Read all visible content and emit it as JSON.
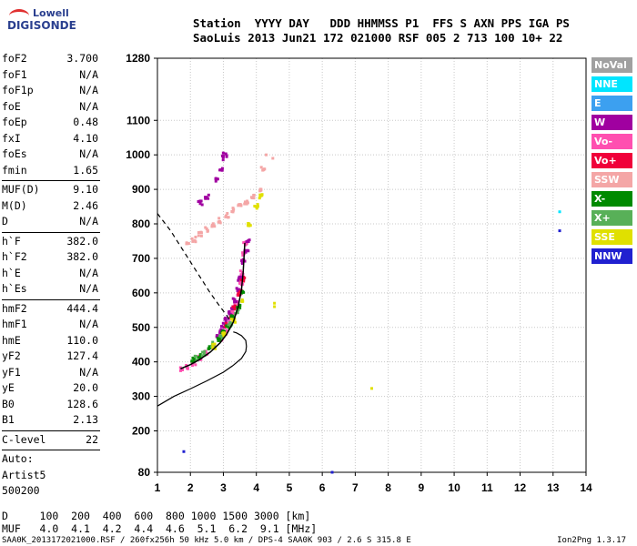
{
  "logo": {
    "line1": "Lowell",
    "line2": "DIGISONDE"
  },
  "header": {
    "labels": "Station  YYYY DAY   DDD HHMMSS P1  FFS S AXN PPS IGA PS",
    "values": "SaoLuis 2013 Jun21 172 021000 RSF 005 2 713 100 10+ 22"
  },
  "params": {
    "group1": [
      {
        "label": "foF2",
        "value": "3.700"
      },
      {
        "label": "foF1",
        "value": "N/A"
      },
      {
        "label": "foF1p",
        "value": "N/A"
      },
      {
        "label": "foE",
        "value": "N/A"
      },
      {
        "label": "foEp",
        "value": "0.48"
      },
      {
        "label": "fxI",
        "value": "4.10"
      },
      {
        "label": "foEs",
        "value": "N/A"
      },
      {
        "label": "fmin",
        "value": "1.65"
      }
    ],
    "group2": [
      {
        "label": "MUF(D)",
        "value": "9.10"
      },
      {
        "label": "M(D)",
        "value": "2.46"
      },
      {
        "label": "D",
        "value": "N/A"
      }
    ],
    "group3": [
      {
        "label": "h`F",
        "value": "382.0"
      },
      {
        "label": "h`F2",
        "value": "382.0"
      },
      {
        "label": "h`E",
        "value": "N/A"
      },
      {
        "label": "h`Es",
        "value": "N/A"
      }
    ],
    "group4": [
      {
        "label": "hmF2",
        "value": "444.4"
      },
      {
        "label": "hmF1",
        "value": "N/A"
      },
      {
        "label": "hmE",
        "value": "110.0"
      },
      {
        "label": "yF2",
        "value": "127.4"
      },
      {
        "label": "yF1",
        "value": "N/A"
      },
      {
        "label": "yE",
        "value": "20.0"
      },
      {
        "label": "B0",
        "value": "128.6"
      },
      {
        "label": "B1",
        "value": "2.13"
      }
    ],
    "group5": [
      {
        "label": "C-level",
        "value": "22"
      }
    ],
    "auto": [
      "Auto:",
      "Artist5",
      "500200"
    ]
  },
  "muf_table": {
    "d_line": "D     100  200  400  600  800 1000 1500 3000 [km]",
    "muf_line": "MUF   4.0  4.1  4.2  4.4  4.6  5.1  6.2  9.1 [MHz]"
  },
  "footer": {
    "left": "SAA0K_2013172021000.RSF / 260fx256h 50 kHz 5.0 km / DPS-4 SAA0K 903 / 2.6 S 315.8 E",
    "right": "Ion2Png 1.3.17"
  },
  "legend": [
    {
      "label": "NoVal",
      "color": "#a0a0a0"
    },
    {
      "label": "NNE",
      "color": "#00e5ff"
    },
    {
      "label": "E",
      "color": "#3ca0f0"
    },
    {
      "label": "W",
      "color": "#a000a0"
    },
    {
      "label": "Vo-",
      "color": "#ff4fb0"
    },
    {
      "label": "Vo+",
      "color": "#f0003a"
    },
    {
      "label": "SSW",
      "color": "#f4a6a6"
    },
    {
      "label": "X-",
      "color": "#008a00"
    },
    {
      "label": "X+",
      "color": "#58b058"
    },
    {
      "label": "SSE",
      "color": "#e0e000"
    },
    {
      "label": "NNW",
      "color": "#2020d0"
    }
  ],
  "chart_data": {
    "type": "scatter",
    "xlim": [
      1,
      14
    ],
    "ylim": [
      80,
      1280
    ],
    "x_ticks": [
      "1",
      "2",
      "3",
      "4",
      "5",
      "6",
      "7",
      "8",
      "9",
      "10",
      "11",
      "12",
      "13",
      "14"
    ],
    "y_ticks": [
      {
        "value": 80,
        "label": "80"
      },
      {
        "value": 200,
        "label": "200"
      },
      {
        "value": 300,
        "label": "300"
      },
      {
        "value": 400,
        "label": "400"
      },
      {
        "value": 500,
        "label": "500"
      },
      {
        "value": 600,
        "label": "600"
      },
      {
        "value": 700,
        "label": "700"
      },
      {
        "value": 800,
        "label": "800"
      },
      {
        "value": 900,
        "label": "900"
      },
      {
        "value": 1000,
        "label": "1000"
      },
      {
        "value": 1100,
        "label": "1100"
      },
      {
        "value": 1280,
        "label": "1280"
      }
    ],
    "grid": true,
    "profile_curve": {
      "x": [
        1.0,
        1.5,
        2.0,
        2.5,
        3.0,
        3.3,
        3.55,
        3.68,
        3.7,
        3.68,
        3.55,
        3.4,
        3.3
      ],
      "y": [
        272,
        300,
        322,
        345,
        370,
        390,
        410,
        430,
        445,
        462,
        476,
        484,
        487
      ]
    },
    "trace_curve": {
      "x": [
        1.7,
        2.0,
        2.3,
        2.6,
        2.9,
        3.1,
        3.3,
        3.45,
        3.55,
        3.6,
        3.63,
        3.65
      ],
      "y": [
        380,
        392,
        408,
        428,
        455,
        480,
        515,
        560,
        610,
        660,
        710,
        745
      ]
    },
    "muf_curve_dashed": {
      "x": [
        1.0,
        1.4,
        1.8,
        2.2,
        2.6,
        2.9,
        3.1,
        3.2
      ],
      "y": [
        830,
        780,
        720,
        660,
        600,
        560,
        535,
        520
      ]
    },
    "scatter_points": {
      "o_trace_main": {
        "color": "#ff4fb0",
        "x": [
          1.75,
          1.9,
          2.1,
          2.3,
          2.5,
          2.7,
          2.9,
          3.05,
          3.2,
          3.3,
          3.4,
          3.48,
          3.55,
          3.58,
          3.62,
          3.64,
          3.66
        ],
        "y": [
          378,
          386,
          396,
          410,
          425,
          445,
          465,
          485,
          510,
          540,
          570,
          600,
          630,
          660,
          690,
          715,
          740
        ]
      },
      "o_trace_dark": {
        "color": "#a000a0",
        "x": [
          2.8,
          2.9,
          3.0,
          3.1,
          3.2,
          3.3,
          3.35,
          3.45,
          3.5,
          3.6,
          3.7,
          3.75
        ],
        "y": [
          470,
          490,
          505,
          525,
          540,
          560,
          580,
          610,
          640,
          690,
          720,
          750
        ]
      },
      "o_trace_red": {
        "color": "#f0003a",
        "x": [
          3.0,
          3.1,
          3.25,
          3.35,
          3.5,
          3.6
        ],
        "y": [
          480,
          505,
          530,
          560,
          600,
          640
        ]
      },
      "x_trace": {
        "color": "#008a00",
        "x": [
          2.1,
          2.3,
          2.6,
          2.85,
          3.0,
          3.15,
          3.3,
          3.45,
          3.6
        ],
        "y": [
          405,
          415,
          440,
          465,
          485,
          505,
          530,
          560,
          600
        ]
      },
      "x_trace_light": {
        "color": "#58b058",
        "x": [
          2.2,
          2.4,
          2.7,
          2.95,
          3.2,
          3.4
        ],
        "y": [
          410,
          425,
          450,
          475,
          510,
          545
        ]
      },
      "sse_points": {
        "color": "#e0e000",
        "x": [
          2.7,
          3.0,
          3.3,
          3.6,
          3.8,
          4.0,
          4.15
        ],
        "y": [
          445,
          480,
          520,
          580,
          800,
          850,
          880
        ]
      },
      "ssw_cloud": {
        "color": "#f4a6a6",
        "x": [
          1.9,
          2.1,
          2.3,
          2.5,
          2.7,
          2.9,
          3.1,
          3.3,
          3.5,
          3.7,
          3.9,
          4.1,
          4.2
        ],
        "y": [
          740,
          755,
          770,
          785,
          795,
          810,
          825,
          840,
          850,
          860,
          880,
          900,
          960
        ]
      },
      "w_cloud_upper": {
        "color": "#a000a0",
        "x": [
          2.3,
          2.5,
          2.8,
          2.95,
          3.0,
          3.05
        ],
        "y": [
          860,
          880,
          930,
          960,
          990,
          1000
        ]
      },
      "outliers_ssw": {
        "color": "#f4a6a6",
        "x": [
          4.3,
          4.5
        ],
        "y": [
          1000,
          990
        ]
      },
      "outliers_misc": {
        "color": "#2020d0",
        "x": [
          1.8,
          6.3,
          13.2
        ],
        "y": [
          140,
          80,
          780
        ]
      },
      "outliers_nne": {
        "color": "#00e5ff",
        "x": [
          13.2
        ],
        "y": [
          835
        ]
      },
      "outliers_sse": {
        "color": "#e0e000",
        "x": [
          7.5,
          4.55,
          4.55
        ],
        "y": [
          323,
          570,
          560
        ]
      }
    }
  }
}
